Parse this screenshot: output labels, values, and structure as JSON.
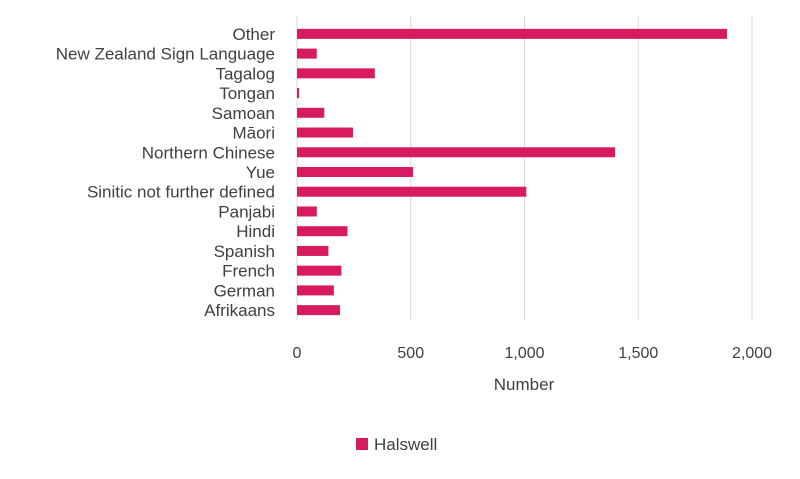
{
  "chart_data": {
    "type": "bar",
    "orientation": "horizontal",
    "categories": [
      "Other",
      "New Zealand Sign Language",
      "Tagalog",
      "Tongan",
      "Samoan",
      "Māori",
      "Northern Chinese",
      "Yue",
      "Sinitic not further defined",
      "Panjabi",
      "Hindi",
      "Spanish",
      "French",
      "German",
      "Afrikaans"
    ],
    "series": [
      {
        "name": "Halswell",
        "color": "#d81b60",
        "values": [
          1890,
          87,
          342,
          9,
          120,
          246,
          1398,
          510,
          1008,
          87,
          222,
          138,
          195,
          162,
          189
        ]
      }
    ],
    "xlabel": "Number",
    "xlim": [
      0,
      2000
    ],
    "xticks": [
      0,
      500,
      1000,
      1500,
      2000
    ],
    "xtick_labels": [
      "0",
      "500",
      "1,000",
      "1,500",
      "2,000"
    ],
    "grid": "vertical",
    "legend": "bottom"
  }
}
